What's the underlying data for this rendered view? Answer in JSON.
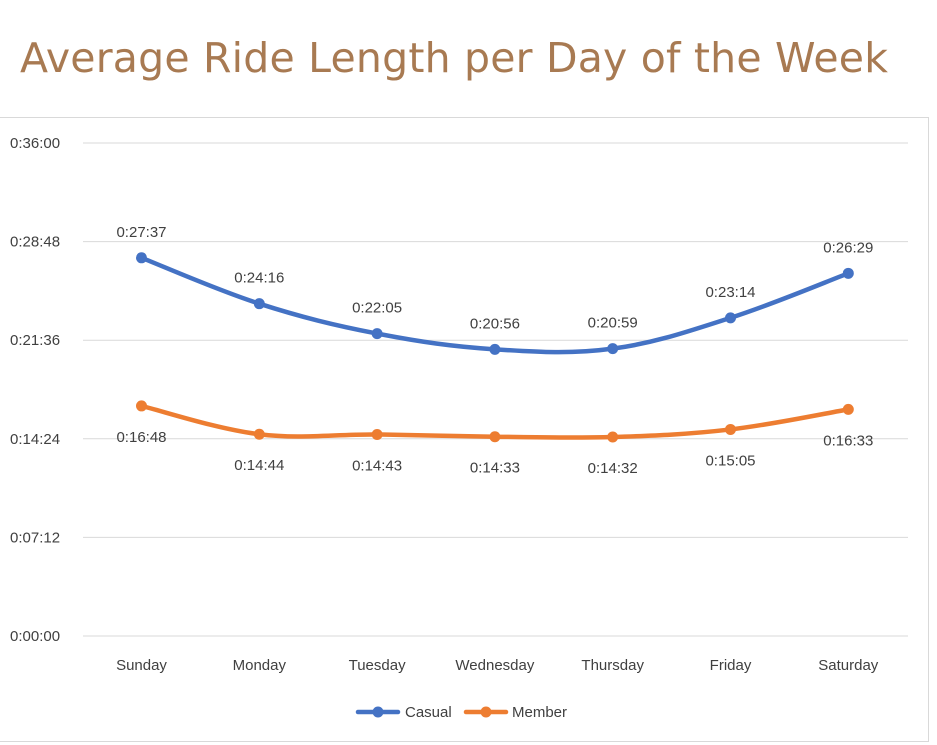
{
  "page": {
    "title": "Average Ride Length per Day of the Week"
  },
  "chart_data": {
    "type": "line",
    "title": "",
    "xlabel": "",
    "ylabel": "",
    "categories": [
      "Sunday",
      "Monday",
      "Tuesday",
      "Wednesday",
      "Thursday",
      "Friday",
      "Saturday"
    ],
    "y_ticks": [
      "0:00:00",
      "0:07:12",
      "0:14:24",
      "0:21:36",
      "0:28:48",
      "0:36:00"
    ],
    "ylim": [
      "0:00:00",
      "0:36:00"
    ],
    "grid": true,
    "legend_position": "bottom",
    "series": [
      {
        "name": "Casual",
        "color": "#4472c4",
        "values": [
          "0:27:37",
          "0:24:16",
          "0:22:05",
          "0:20:56",
          "0:20:59",
          "0:23:14",
          "0:26:29"
        ],
        "label_position": "above"
      },
      {
        "name": "Member",
        "color": "#ed7d31",
        "values": [
          "0:16:48",
          "0:14:44",
          "0:14:43",
          "0:14:33",
          "0:14:32",
          "0:15:05",
          "0:16:33"
        ],
        "label_position": "below"
      }
    ]
  }
}
